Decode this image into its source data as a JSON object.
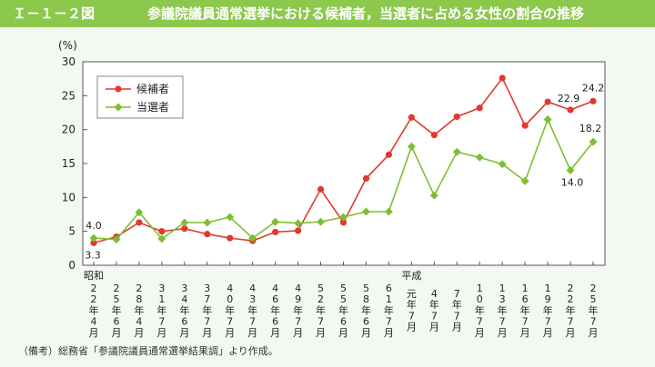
{
  "header": {
    "figure_number": "Ｉ－１－２図",
    "title": "参議院議員通常選挙における候補者，当選者に占める女性の割合の推移"
  },
  "footer": {
    "note": "（備考）総務省「参議院議員通常選挙結果調」より作成。"
  },
  "chart_data": {
    "type": "line",
    "title": "参議院議員通常選挙における候補者，当選者に占める女性の割合の推移",
    "ylabel": "(%)",
    "xlabel": "",
    "ylim": [
      0,
      30
    ],
    "yticks": [
      "0",
      "5",
      "10",
      "15",
      "20",
      "25",
      "30"
    ],
    "era_labels": {
      "showa": "昭和",
      "heisei": "平成"
    },
    "categories": [
      {
        "year": "22",
        "month": "4"
      },
      {
        "year": "25",
        "month": "6"
      },
      {
        "year": "28",
        "month": "4"
      },
      {
        "year": "31",
        "month": "7"
      },
      {
        "year": "34",
        "month": "6"
      },
      {
        "year": "37",
        "month": "7"
      },
      {
        "year": "40",
        "month": "7"
      },
      {
        "year": "43",
        "month": "7"
      },
      {
        "year": "46",
        "month": "6"
      },
      {
        "year": "49",
        "month": "7"
      },
      {
        "year": "52",
        "month": "7"
      },
      {
        "year": "55",
        "month": "6"
      },
      {
        "year": "58",
        "month": "6"
      },
      {
        "year": "61",
        "month": "7"
      },
      {
        "year": "元",
        "month": "7"
      },
      {
        "year": "4",
        "month": "7"
      },
      {
        "year": "7",
        "month": "7"
      },
      {
        "year": "10",
        "month": "7"
      },
      {
        "year": "13",
        "month": "7"
      },
      {
        "year": "16",
        "month": "7"
      },
      {
        "year": "19",
        "month": "7"
      },
      {
        "year": "22",
        "month": "7"
      },
      {
        "year": "25",
        "month": "7"
      }
    ],
    "year_suffix": "年",
    "month_suffix": "月",
    "series": [
      {
        "name": "候補者",
        "color": "#e03a2f",
        "marker": "circle",
        "values": [
          3.3,
          4.2,
          6.3,
          5.0,
          5.4,
          4.6,
          4.0,
          3.6,
          4.9,
          5.1,
          11.2,
          6.3,
          12.8,
          16.3,
          21.8,
          19.2,
          21.9,
          23.2,
          27.6,
          20.6,
          24.1,
          22.9,
          24.2
        ],
        "labels": [
          {
            "index": 0,
            "text": "3.3"
          },
          {
            "index": 21,
            "text": "22.9"
          },
          {
            "index": 22,
            "text": "24.2"
          }
        ]
      },
      {
        "name": "当選者",
        "color": "#7dbf34",
        "marker": "diamond",
        "values": [
          4.0,
          3.8,
          7.8,
          3.9,
          6.3,
          6.3,
          7.1,
          4.0,
          6.4,
          6.2,
          6.4,
          7.1,
          7.9,
          7.9,
          17.5,
          10.3,
          16.7,
          15.9,
          14.9,
          12.4,
          21.5,
          14.0,
          18.2
        ],
        "labels": [
          {
            "index": 0,
            "text": "4.0"
          },
          {
            "index": 21,
            "text": "14.0"
          },
          {
            "index": 22,
            "text": "18.2"
          }
        ]
      }
    ],
    "legend": "top-left"
  }
}
